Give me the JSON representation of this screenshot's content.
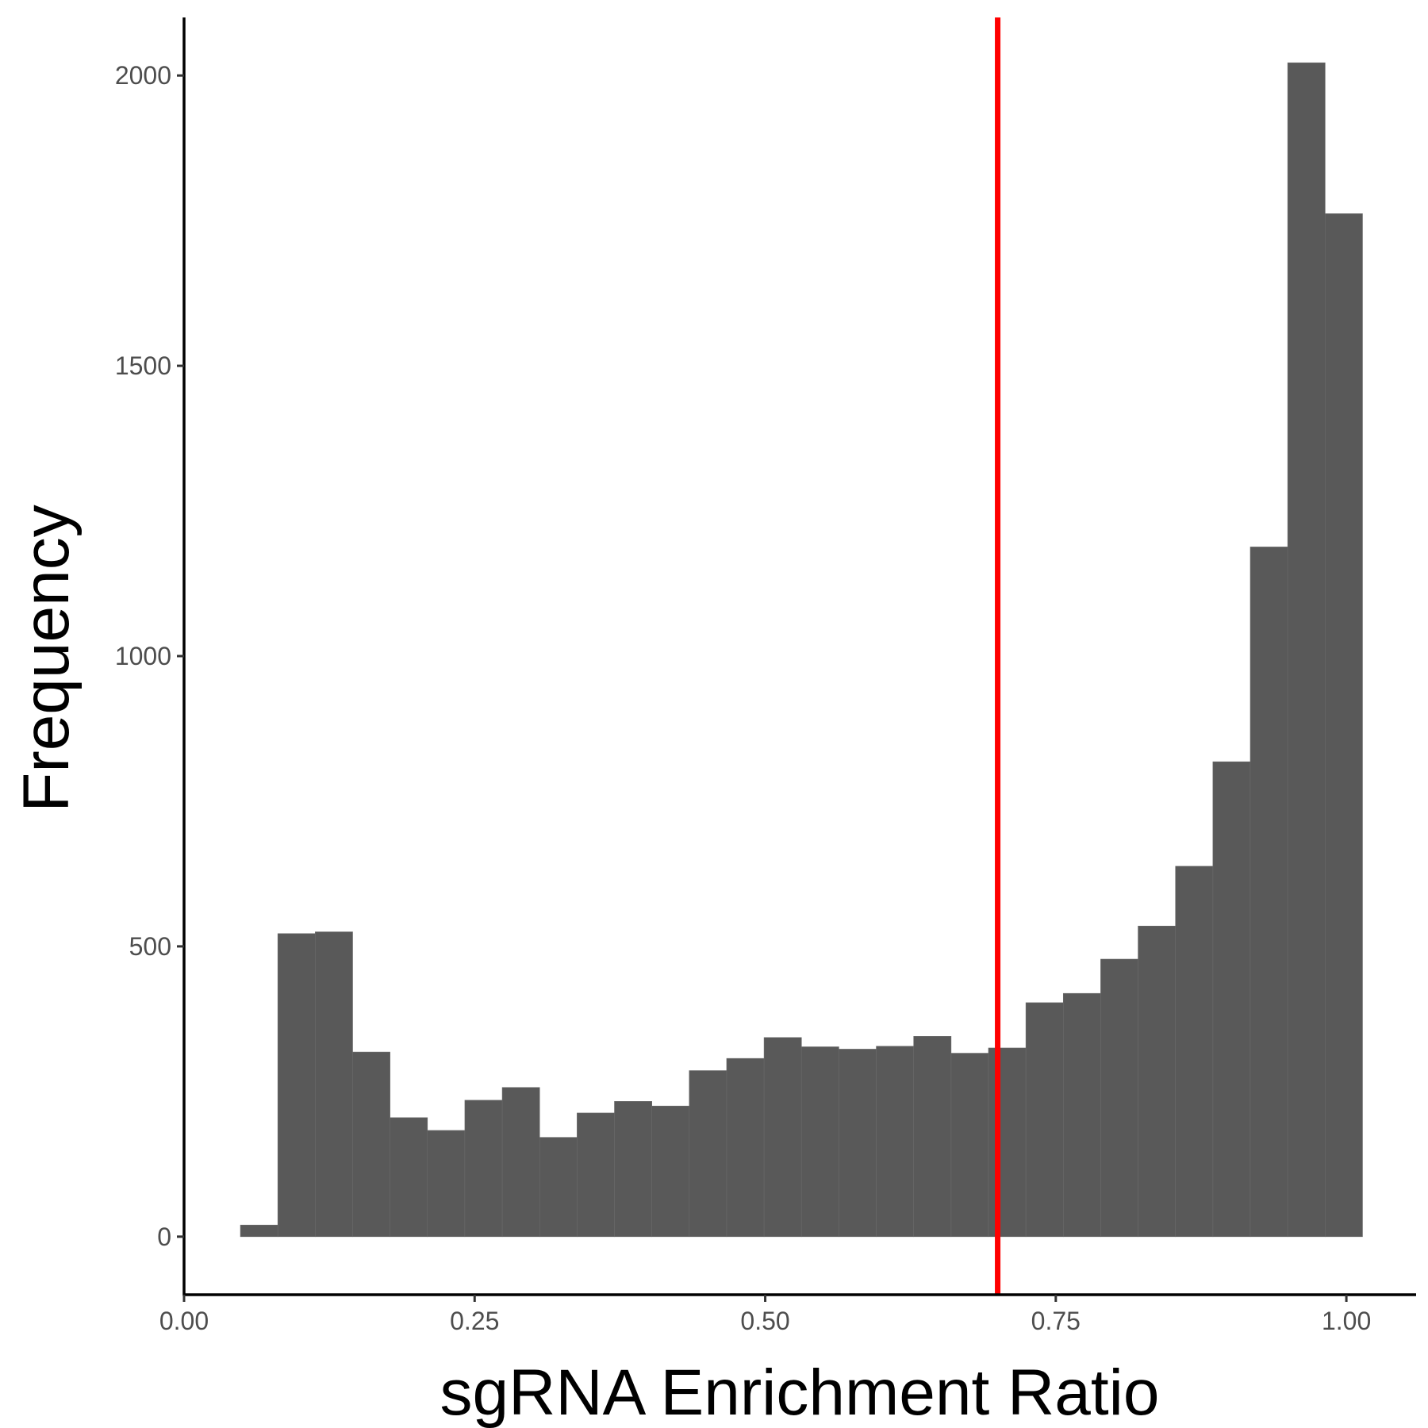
{
  "chart_data": {
    "type": "bar",
    "subtype": "histogram",
    "xlabel": "sgRNA Enrichment Ratio",
    "ylabel": "Frequency",
    "xlim": [
      0.0,
      1.06
    ],
    "ylim": [
      -100,
      2100
    ],
    "x_ticks": [
      0.0,
      0.25,
      0.5,
      0.75,
      1.0
    ],
    "x_tick_labels": [
      "0.00",
      "0.25",
      "0.50",
      "0.75",
      "1.00"
    ],
    "y_ticks": [
      0,
      500,
      1000,
      1500,
      2000
    ],
    "y_tick_labels": [
      "0",
      "500",
      "1000",
      "1500",
      "2000"
    ],
    "bin_start": 0.0485,
    "bin_width": 0.03218,
    "values": [
      20,
      522,
      525,
      318,
      205,
      183,
      235,
      257,
      171,
      213,
      233,
      225,
      286,
      307,
      343,
      327,
      323,
      328,
      345,
      316,
      325,
      403,
      419,
      478,
      535,
      638,
      818,
      1188,
      2022,
      1762
    ],
    "bar_color": "#595959",
    "reference_line": {
      "x": 0.7,
      "color": "#ff0000"
    },
    "grid": false,
    "legend": "none"
  }
}
